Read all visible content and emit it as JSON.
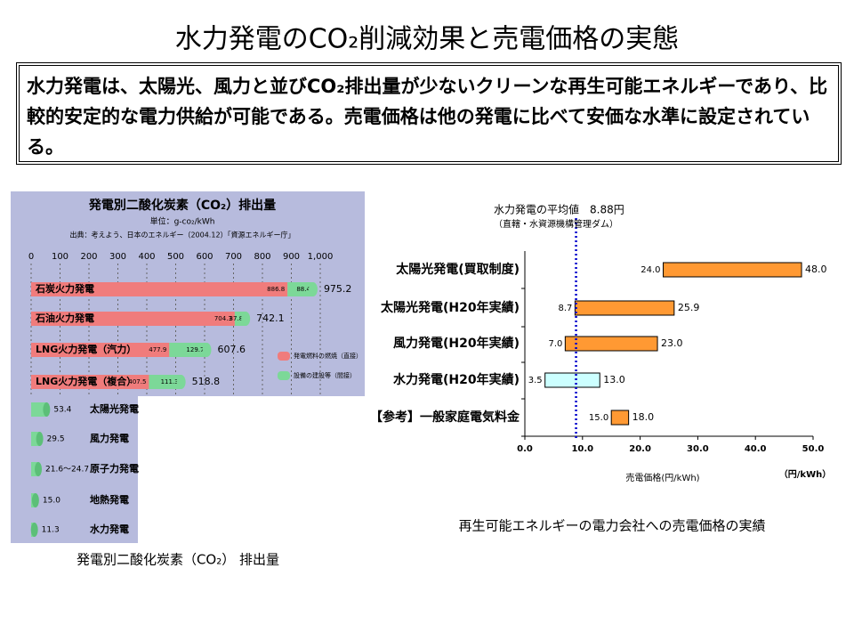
{
  "title": "水力発電のCO₂削減効果と売電価格の実態",
  "summary": "水力発電は、太陽光、風力と並びCO₂排出量が少ないクリーンな再生可能エネルギーであり、比較的安定的な電力供給が可能である。売電価格は他の発電に比べて安価な水準に設定されている。",
  "chart_data": [
    {
      "type": "bar",
      "title": "発電別二酸化炭素（CO₂）排出量",
      "unit": "単位：g-co₂/kWh",
      "source": "出典：考えよう、日本のエネルギー（2004.12）「資源エネルギー庁」",
      "caption": "発電別二酸化炭素（CO₂） 排出量",
      "background": "#b7bbdd",
      "grid": true,
      "categories": [
        "石炭火力発電",
        "石油火力発電",
        "LNG火力発電（汽力）",
        "LNG火力発電（複合）",
        "太陽光発電",
        "風力発電",
        "原子力発電",
        "地熱発電",
        "水力発電"
      ],
      "xlim": [
        0,
        1000
      ],
      "xticks": [
        0,
        100,
        200,
        300,
        400,
        500,
        600,
        700,
        800,
        900,
        {
          "value": 1000,
          "label": "1,000"
        }
      ],
      "series": [
        {
          "name": "発電燃料の燃焼（直接）",
          "color": "#f07c7c",
          "values": [
            886.8,
            704.3,
            477.9,
            407.5,
            null,
            null,
            null,
            null,
            null
          ]
        },
        {
          "name": "設備の建設等（間接）",
          "color": "#7cd898",
          "values": [
            88.4,
            37.8,
            129.7,
            111.3,
            null,
            null,
            null,
            null,
            null
          ]
        }
      ],
      "totals": [
        975.2,
        742.1,
        607.6,
        518.8,
        53.4,
        29.5,
        24.7,
        15.0,
        11.3
      ],
      "total_labels": [
        "975.2",
        "742.1",
        "607.6",
        "518.8",
        "53.4",
        "29.5",
        "21.6～24.7",
        "15.0",
        "11.3"
      ]
    },
    {
      "type": "floating-bar",
      "annotation": "水力発電の平均値　8.88円",
      "annotation_note": "（直轄・水資源機構管理ダム）",
      "reference_line": 8.88,
      "reference_color": "#0000cc",
      "categories": [
        "太陽光発電(買取制度)",
        "太陽光発電(H20年実績)",
        "風力発電(H20年実績)",
        "水力発電(H20年実績)",
        "【参考】一般家庭電気料金"
      ],
      "low": [
        24.0,
        8.7,
        7.0,
        3.5,
        15.0
      ],
      "high": [
        48.0,
        25.9,
        23.0,
        13.0,
        18.0
      ],
      "low_labels": [
        "24.0",
        "8.7",
        "7.0",
        "3.5",
        "15.0"
      ],
      "high_labels": [
        "48.0",
        "25.9",
        "23.0",
        "13.0",
        "18.0"
      ],
      "colors": [
        "#ff9933",
        "#ff9933",
        "#ff9933",
        "#ccffff",
        "#ff9933"
      ],
      "xlim": [
        0,
        50
      ],
      "xticks": [
        {
          "value": 0,
          "label": "0.0"
        },
        {
          "value": 10,
          "label": "10.0"
        },
        {
          "value": 20,
          "label": "20.0"
        },
        {
          "value": 30,
          "label": "30.0"
        },
        {
          "value": 40,
          "label": "40.0"
        },
        {
          "value": 50,
          "label": "50.0"
        }
      ],
      "xlabel": "売電価格(円/kWh)",
      "unit": "（円/kWh）",
      "caption": "再生可能エネルギーの電力会社への売電価格の実績"
    }
  ]
}
